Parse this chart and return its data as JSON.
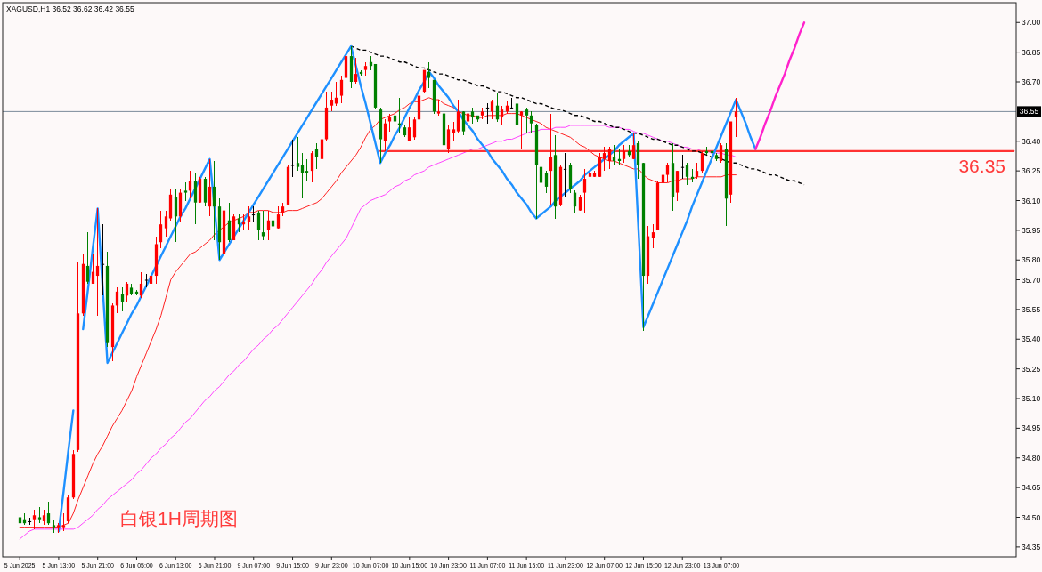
{
  "chart_data": {
    "type": "candlestick",
    "title": "XAGUSD,H1 36.52 36.62 36.42 36.55",
    "categories": [
      "5 Jun 2025",
      null,
      null,
      null,
      null,
      null,
      null,
      null,
      "5 Jun 13:00",
      null,
      null,
      null,
      null,
      null,
      null,
      null,
      "5 Jun 21:00",
      null,
      null,
      null,
      null,
      null,
      null,
      null,
      "6 Jun 05:00",
      null,
      null,
      null,
      null,
      null,
      null,
      null,
      "6 Jun 13:00",
      null,
      null,
      null,
      null,
      null,
      null,
      null,
      "6 Jun 21:00",
      null,
      null,
      null,
      null,
      null,
      null,
      null,
      "9 Jun 07:00",
      null,
      null,
      null,
      null,
      null,
      null,
      null,
      "9 Jun 15:00",
      null,
      null,
      null,
      null,
      null,
      null,
      null,
      "9 Jun 23:00",
      null,
      null,
      null,
      null,
      null,
      null,
      null,
      "10 Jun 07:00",
      null,
      null,
      null,
      null,
      null,
      null,
      null,
      "10 Jun 15:00",
      null,
      null,
      null,
      null,
      null,
      null,
      null,
      "10 Jun 23:00",
      null,
      null,
      null,
      null,
      null,
      null,
      null,
      "11 Jun 07:00",
      null,
      null,
      null,
      null,
      null,
      null,
      null,
      "11 Jun 15:00",
      null,
      null,
      null,
      null,
      null,
      null,
      null,
      "11 Jun 23:00",
      null,
      null,
      null,
      null,
      null,
      null,
      null,
      "12 Jun 07:00",
      null,
      null,
      null,
      null,
      null,
      null,
      null,
      "12 Jun 15:00",
      null,
      null,
      null,
      null,
      null,
      null,
      null,
      "12 Jun 23:00",
      null,
      null,
      null,
      null,
      null,
      null,
      null,
      "13 Jun 07:00",
      null,
      null,
      null,
      null,
      null,
      null,
      null,
      null,
      null,
      null,
      null,
      null,
      null,
      null,
      null,
      null,
      null,
      null,
      null,
      null,
      null,
      null,
      null,
      null,
      null,
      null,
      null,
      null,
      null,
      null,
      null,
      null,
      null,
      null,
      null,
      null,
      null,
      null,
      null,
      null,
      null,
      null,
      null,
      null,
      null,
      null,
      null,
      null,
      null,
      null,
      null,
      null,
      null,
      null,
      null,
      null,
      null,
      null,
      null,
      null
    ],
    "ohlc": [
      [
        34.5,
        34.51,
        34.46,
        34.47
      ],
      [
        34.49,
        34.52,
        34.46,
        34.47
      ],
      [
        34.48,
        34.5,
        34.46,
        34.48
      ],
      [
        34.49,
        34.54,
        34.44,
        34.51
      ],
      [
        34.5,
        34.55,
        34.47,
        34.49
      ],
      [
        34.48,
        34.54,
        34.46,
        34.51
      ],
      [
        34.52,
        34.58,
        34.46,
        34.47
      ],
      [
        34.46,
        34.49,
        34.42,
        34.45
      ],
      [
        34.45,
        34.47,
        34.42,
        34.46
      ],
      [
        34.45,
        34.52,
        34.43,
        34.46
      ],
      [
        34.48,
        34.61,
        34.47,
        34.6
      ],
      [
        34.6,
        34.84,
        34.59,
        34.82
      ],
      [
        34.84,
        35.79,
        34.83,
        35.53
      ],
      [
        35.53,
        35.83,
        35.52,
        35.78
      ],
      [
        35.77,
        35.94,
        35.68,
        35.69
      ],
      [
        35.68,
        35.83,
        35.68,
        35.74
      ],
      [
        35.72,
        36.06,
        35.52,
        35.77
      ],
      [
        35.78,
        35.98,
        35.62,
        35.78
      ],
      [
        35.77,
        35.84,
        35.36,
        35.38
      ],
      [
        35.36,
        35.58,
        35.29,
        35.57
      ],
      [
        35.57,
        35.66,
        35.53,
        35.64
      ],
      [
        35.63,
        35.66,
        35.54,
        35.59
      ],
      [
        35.62,
        35.69,
        35.59,
        35.68
      ],
      [
        35.66,
        35.68,
        35.62,
        35.63
      ],
      [
        35.64,
        35.65,
        35.62,
        35.63
      ],
      [
        35.62,
        35.74,
        35.61,
        35.68
      ],
      [
        35.7,
        35.73,
        35.66,
        35.7
      ],
      [
        35.68,
        35.75,
        35.68,
        35.72
      ],
      [
        35.72,
        35.92,
        35.68,
        35.88
      ],
      [
        35.89,
        36.05,
        35.86,
        35.98
      ],
      [
        35.96,
        36.05,
        35.92,
        36.02
      ],
      [
        36.01,
        36.16,
        36.0,
        36.13
      ],
      [
        36.12,
        36.16,
        35.89,
        36.02
      ],
      [
        36.02,
        36.16,
        35.99,
        36.14
      ],
      [
        36.15,
        36.19,
        36.1,
        36.14
      ],
      [
        36.15,
        36.25,
        36.11,
        36.2
      ],
      [
        36.2,
        36.24,
        35.98,
        36.09
      ],
      [
        36.09,
        36.22,
        36.09,
        36.21
      ],
      [
        36.21,
        36.22,
        36.07,
        36.09
      ],
      [
        36.07,
        36.31,
        36.02,
        36.17
      ],
      [
        36.17,
        36.3,
        35.9,
        36.07
      ],
      [
        36.07,
        36.11,
        35.8,
        35.89
      ],
      [
        35.83,
        36.07,
        35.81,
        36.05
      ],
      [
        36.0,
        36.09,
        35.89,
        35.9
      ],
      [
        35.9,
        36.03,
        35.9,
        36.02
      ],
      [
        36.01,
        36.03,
        35.94,
        35.98
      ],
      [
        35.98,
        36.03,
        35.95,
        35.99
      ],
      [
        35.99,
        36.07,
        35.95,
        36.02
      ],
      [
        36.03,
        36.07,
        35.99,
        36.03
      ],
      [
        36.04,
        36.05,
        35.9,
        35.95
      ],
      [
        35.94,
        36.05,
        35.9,
        35.92
      ],
      [
        35.95,
        36.05,
        35.9,
        36.0
      ],
      [
        36.0,
        36.04,
        35.93,
        35.97
      ],
      [
        35.96,
        36.07,
        35.96,
        36.03
      ],
      [
        36.04,
        36.09,
        36.02,
        36.07
      ],
      [
        36.08,
        36.28,
        36.08,
        36.27
      ],
      [
        36.28,
        36.41,
        36.22,
        36.28
      ],
      [
        36.29,
        36.42,
        36.25,
        36.27
      ],
      [
        36.28,
        36.34,
        36.11,
        36.24
      ],
      [
        36.25,
        36.31,
        36.2,
        36.24
      ],
      [
        36.25,
        36.35,
        36.19,
        36.34
      ],
      [
        36.36,
        36.39,
        36.26,
        36.32
      ],
      [
        36.31,
        36.45,
        36.23,
        36.41
      ],
      [
        36.41,
        36.65,
        36.4,
        36.57
      ],
      [
        36.58,
        36.65,
        36.55,
        36.61
      ],
      [
        36.59,
        36.7,
        36.58,
        36.62
      ],
      [
        36.63,
        36.73,
        36.59,
        36.71
      ],
      [
        36.72,
        36.88,
        36.71,
        36.83
      ],
      [
        36.83,
        36.88,
        36.67,
        36.7
      ],
      [
        36.7,
        36.82,
        36.69,
        36.74
      ],
      [
        36.75,
        36.76,
        36.73,
        36.74
      ],
      [
        36.76,
        36.8,
        36.73,
        36.78
      ],
      [
        36.8,
        36.83,
        36.76,
        36.78
      ],
      [
        36.79,
        36.79,
        36.56,
        36.57
      ],
      [
        36.56,
        36.57,
        36.29,
        36.41
      ],
      [
        36.4,
        36.51,
        36.35,
        36.49
      ],
      [
        36.5,
        36.54,
        36.45,
        36.52
      ],
      [
        36.53,
        36.55,
        36.45,
        36.5
      ],
      [
        36.49,
        36.62,
        36.44,
        36.48
      ],
      [
        36.47,
        36.48,
        36.42,
        36.43
      ],
      [
        36.4,
        36.52,
        36.4,
        36.47
      ],
      [
        36.42,
        36.52,
        36.41,
        36.51
      ],
      [
        36.51,
        36.65,
        36.5,
        36.63
      ],
      [
        36.65,
        36.76,
        36.64,
        36.76
      ],
      [
        36.75,
        36.8,
        36.67,
        36.72
      ],
      [
        36.71,
        36.71,
        36.54,
        36.55
      ],
      [
        36.54,
        36.61,
        36.53,
        36.55
      ],
      [
        36.54,
        36.55,
        36.31,
        36.38
      ],
      [
        36.36,
        36.48,
        36.34,
        36.46
      ],
      [
        36.44,
        36.5,
        36.4,
        36.46
      ],
      [
        36.45,
        36.61,
        36.44,
        36.55
      ],
      [
        36.55,
        36.55,
        36.43,
        36.45
      ],
      [
        36.5,
        36.6,
        36.46,
        36.54
      ],
      [
        36.55,
        36.57,
        36.49,
        36.52
      ],
      [
        36.53,
        36.53,
        36.5,
        36.51
      ],
      [
        36.53,
        36.57,
        36.51,
        36.55
      ],
      [
        36.57,
        36.59,
        36.49,
        36.57
      ],
      [
        36.55,
        36.61,
        36.51,
        36.6
      ],
      [
        36.58,
        36.64,
        36.5,
        36.51
      ],
      [
        36.52,
        36.58,
        36.48,
        36.56
      ],
      [
        36.55,
        36.6,
        36.54,
        36.58
      ],
      [
        36.57,
        36.62,
        36.56,
        36.57
      ],
      [
        36.59,
        36.59,
        36.43,
        36.48
      ],
      [
        36.53,
        36.55,
        36.36,
        36.55
      ],
      [
        36.56,
        36.57,
        36.44,
        36.53
      ],
      [
        36.53,
        36.55,
        36.44,
        36.49
      ],
      [
        36.48,
        36.49,
        36.01,
        36.28
      ],
      [
        36.27,
        36.29,
        36.16,
        36.19
      ],
      [
        36.24,
        36.25,
        36.14,
        36.17
      ],
      [
        36.25,
        36.54,
        36.08,
        36.32
      ],
      [
        36.33,
        36.43,
        36.01,
        36.07
      ],
      [
        36.08,
        36.28,
        36.07,
        36.27
      ],
      [
        36.26,
        36.34,
        36.12,
        36.26
      ],
      [
        36.28,
        36.29,
        36.14,
        36.16
      ],
      [
        36.14,
        36.15,
        36.04,
        36.07
      ],
      [
        36.05,
        36.13,
        36.05,
        36.12
      ],
      [
        36.14,
        36.26,
        36.04,
        36.21
      ],
      [
        36.22,
        36.27,
        36.2,
        36.24
      ],
      [
        36.22,
        36.25,
        36.22,
        36.24
      ],
      [
        36.22,
        36.34,
        36.22,
        36.32
      ],
      [
        36.31,
        36.37,
        36.25,
        36.34
      ],
      [
        36.3,
        36.37,
        36.26,
        36.36
      ],
      [
        36.32,
        36.38,
        36.28,
        36.3
      ],
      [
        36.31,
        36.36,
        36.28,
        36.3
      ],
      [
        36.31,
        36.38,
        36.29,
        36.35
      ],
      [
        36.35,
        36.38,
        36.32,
        36.33
      ],
      [
        36.31,
        36.44,
        36.31,
        36.38
      ],
      [
        36.39,
        36.4,
        36.21,
        36.28
      ],
      [
        36.29,
        36.29,
        35.44,
        35.72
      ],
      [
        35.72,
        35.97,
        35.68,
        35.92
      ],
      [
        35.91,
        35.98,
        35.86,
        35.94
      ],
      [
        35.95,
        36.2,
        35.95,
        36.19
      ],
      [
        36.19,
        36.26,
        36.16,
        36.23
      ],
      [
        36.23,
        36.29,
        36.19,
        36.28
      ],
      [
        36.29,
        36.39,
        36.05,
        36.12
      ],
      [
        36.14,
        36.25,
        36.1,
        36.25
      ],
      [
        36.27,
        36.33,
        36.21,
        36.27
      ],
      [
        36.28,
        36.29,
        36.18,
        36.22
      ],
      [
        36.22,
        36.26,
        36.19,
        36.21
      ],
      [
        36.22,
        36.29,
        36.21,
        36.25
      ],
      [
        36.25,
        36.35,
        36.24,
        36.34
      ],
      [
        36.35,
        36.37,
        36.33,
        36.34
      ],
      [
        36.35,
        36.36,
        36.33,
        36.34
      ],
      [
        36.33,
        36.34,
        36.3,
        36.31
      ],
      [
        36.3,
        36.39,
        36.29,
        36.38
      ],
      [
        36.36,
        36.39,
        35.97,
        36.11
      ],
      [
        36.13,
        36.5,
        36.09,
        36.5
      ],
      [
        36.52,
        36.62,
        36.42,
        36.55
      ],
      null,
      null,
      null,
      null,
      null,
      null,
      null,
      null,
      null,
      null,
      null,
      null,
      null,
      null,
      null,
      null,
      null,
      null,
      null,
      null,
      null,
      null,
      null,
      null,
      null,
      null,
      null,
      null,
      null,
      null,
      null,
      null,
      null,
      null,
      null,
      null,
      null,
      null,
      null,
      null,
      null,
      null,
      null,
      null,
      null,
      null,
      null,
      null,
      null,
      null,
      null,
      null,
      null,
      null,
      null,
      null,
      null
    ],
    "colors": [
      "#008000",
      "#008000",
      "#000000",
      "#ff0000",
      "#008000",
      "#ff0000",
      "#008000",
      "#008000",
      "#ff0000",
      "#ff0000",
      "#ff0000",
      "#ff0000",
      "#ff0000",
      "#ff0000",
      "#008000",
      "#ff0000",
      "#ff0000",
      "#000000",
      "#008000",
      "#ff0000",
      "#ff0000",
      "#008000",
      "#ff0000",
      "#008000",
      "#008000",
      "#ff0000",
      "#000000",
      "#ff0000",
      "#ff0000",
      "#ff0000",
      "#ff0000",
      "#ff0000",
      "#008000",
      "#ff0000",
      "#008000",
      "#ff0000",
      "#008000",
      "#ff0000",
      "#008000",
      "#ff0000",
      "#008000",
      "#008000",
      "#ff0000",
      "#008000",
      "#ff0000",
      "#008000",
      "#ff0000",
      "#ff0000",
      "#000000",
      "#008000",
      "#008000",
      "#ff0000",
      "#008000",
      "#ff0000",
      "#ff0000",
      "#ff0000",
      "#000000",
      "#008000",
      "#008000",
      "#008000",
      "#ff0000",
      "#008000",
      "#ff0000",
      "#ff0000",
      "#ff0000",
      "#ff0000",
      "#ff0000",
      "#ff0000",
      "#008000",
      "#ff0000",
      "#008000",
      "#ff0000",
      "#008000",
      "#008000",
      "#008000",
      "#ff0000",
      "#ff0000",
      "#008000",
      "#008000",
      "#008000",
      "#ff0000",
      "#ff0000",
      "#ff0000",
      "#ff0000",
      "#008000",
      "#008000",
      "#ff0000",
      "#008000",
      "#ff0000",
      "#ff0000",
      "#ff0000",
      "#008000",
      "#ff0000",
      "#008000",
      "#008000",
      "#ff0000",
      "#000000",
      "#ff0000",
      "#008000",
      "#ff0000",
      "#ff0000",
      "#000000",
      "#008000",
      "#ff0000",
      "#008000",
      "#008000",
      "#008000",
      "#008000",
      "#008000",
      "#ff0000",
      "#008000",
      "#ff0000",
      "#000000",
      "#008000",
      "#008000",
      "#ff0000",
      "#ff0000",
      "#ff0000",
      "#ff0000",
      "#ff0000",
      "#ff0000",
      "#ff0000",
      "#008000",
      "#008000",
      "#ff0000",
      "#008000",
      "#ff0000",
      "#008000",
      "#008000",
      "#ff0000",
      "#ff0000",
      "#ff0000",
      "#ff0000",
      "#ff0000",
      "#008000",
      "#ff0000",
      "#000000",
      "#008000",
      "#008000",
      "#ff0000",
      "#ff0000",
      "#008000",
      "#008000",
      "#008000",
      "#ff0000",
      "#008000",
      "#ff0000",
      "#ff0000",
      null,
      null,
      null,
      null,
      null,
      null,
      null,
      null,
      null,
      null,
      null,
      null,
      null,
      null,
      null,
      null,
      null,
      null,
      null,
      null,
      null,
      null,
      null,
      null,
      null,
      null,
      null,
      null,
      null,
      null,
      null,
      null,
      null,
      null,
      null,
      null,
      null,
      null,
      null,
      null,
      null,
      null,
      null,
      null,
      null,
      null,
      null,
      null,
      null,
      null,
      null,
      null,
      null,
      null,
      null,
      null,
      null
    ],
    "series": [
      {
        "type": "line",
        "color": "#ff2020",
        "values": [
          34.45,
          34.45,
          34.45,
          34.45,
          34.45,
          34.45,
          34.45,
          34.45,
          34.45,
          34.46,
          34.47,
          34.52,
          34.59,
          34.65,
          34.71,
          34.77,
          34.82,
          34.86,
          34.91,
          34.96,
          35.0,
          35.04,
          35.09,
          35.14,
          35.21,
          35.27,
          35.33,
          35.39,
          35.45,
          35.52,
          35.61,
          35.7,
          35.74,
          35.77,
          35.8,
          35.83,
          35.84,
          35.86,
          35.88,
          35.9,
          35.93,
          35.95,
          35.97,
          35.99,
          36.0,
          36.01,
          36.02,
          36.04,
          36.04,
          36.05,
          36.05,
          36.05,
          36.04,
          36.04,
          36.04,
          36.05,
          36.05,
          36.05,
          36.06,
          36.07,
          36.08,
          36.09,
          36.11,
          36.14,
          36.17,
          36.2,
          36.24,
          36.27,
          36.3,
          36.33,
          36.37,
          36.42,
          36.46,
          36.48,
          36.51,
          36.52,
          36.53,
          36.54,
          36.56,
          36.57,
          36.59,
          36.6,
          36.6,
          36.61,
          36.62,
          36.61,
          36.61,
          36.59,
          36.58,
          36.57,
          36.55,
          36.54,
          36.53,
          36.53,
          36.52,
          36.52,
          36.53,
          36.53,
          36.53,
          36.53,
          36.54,
          36.54,
          36.54,
          36.53,
          36.52,
          36.51,
          36.5,
          36.49,
          36.47,
          36.46,
          36.45,
          36.44,
          36.43,
          36.42,
          36.4,
          36.38,
          36.37,
          36.35,
          36.33,
          36.32,
          36.31,
          36.3,
          36.3,
          36.29,
          36.28,
          36.27,
          36.26,
          36.26,
          36.23,
          36.21,
          36.2,
          36.19,
          36.19,
          36.19,
          36.2,
          36.2,
          36.21,
          36.21,
          36.21,
          36.22,
          36.22,
          36.22,
          36.22,
          36.22,
          36.22,
          36.23,
          36.23,
          36.23,
          null,
          null,
          null,
          null,
          null,
          null,
          null,
          null,
          null,
          null,
          null,
          null,
          null,
          null,
          null,
          null,
          null,
          null,
          null,
          null,
          null,
          null,
          null,
          null,
          null,
          null,
          null,
          null,
          null,
          null,
          null,
          null,
          null,
          null,
          null,
          null,
          null,
          null,
          null,
          null,
          null,
          null,
          null,
          null,
          null,
          null,
          null,
          null,
          null,
          null,
          null,
          null,
          null,
          null,
          null,
          null,
          null
        ]
      },
      {
        "type": "line",
        "color": "#ff44ff",
        "values": [
          34.39,
          34.41,
          34.43,
          34.44,
          34.44,
          34.44,
          34.44,
          34.44,
          34.44,
          34.44,
          34.44,
          34.44,
          34.45,
          34.47,
          34.49,
          34.51,
          34.54,
          34.56,
          34.59,
          34.61,
          34.63,
          34.65,
          34.67,
          34.69,
          34.72,
          34.74,
          34.77,
          34.8,
          34.82,
          34.85,
          34.87,
          34.9,
          34.92,
          34.95,
          34.98,
          35.0,
          35.03,
          35.06,
          35.09,
          35.11,
          35.14,
          35.16,
          35.19,
          35.22,
          35.24,
          35.27,
          35.29,
          35.32,
          35.35,
          35.37,
          35.4,
          35.42,
          35.45,
          35.47,
          35.5,
          35.53,
          35.56,
          35.59,
          35.62,
          35.65,
          35.68,
          35.72,
          35.75,
          35.79,
          35.82,
          35.85,
          35.88,
          35.91,
          35.96,
          36.01,
          36.06,
          36.08,
          36.1,
          36.11,
          36.12,
          36.13,
          36.15,
          36.17,
          36.18,
          36.2,
          36.21,
          36.23,
          36.24,
          36.25,
          36.27,
          36.28,
          36.29,
          36.3,
          36.31,
          36.32,
          36.33,
          36.34,
          36.35,
          36.36,
          36.36,
          36.37,
          36.38,
          36.39,
          36.4,
          36.4,
          36.41,
          36.41,
          36.42,
          36.43,
          36.44,
          36.45,
          36.45,
          36.46,
          36.46,
          36.46,
          36.47,
          36.47,
          36.47,
          36.48,
          36.48,
          36.48,
          36.48,
          36.48,
          36.48,
          36.48,
          36.48,
          36.47,
          36.47,
          36.47,
          36.46,
          36.46,
          36.45,
          36.44,
          36.44,
          36.43,
          36.42,
          36.41,
          36.4,
          36.4,
          36.39,
          36.38,
          36.37,
          36.37,
          36.36,
          36.36,
          36.35,
          36.35,
          36.34,
          36.34,
          36.34,
          36.33,
          36.33,
          36.32,
          null,
          null,
          null,
          null,
          null,
          null,
          null,
          null,
          null,
          null,
          null,
          null,
          null,
          null,
          null,
          null,
          null,
          null,
          null,
          null,
          null,
          null,
          null,
          null,
          null,
          null,
          null,
          null,
          null,
          null,
          null,
          null,
          null,
          null,
          null,
          null,
          null,
          null,
          null,
          null,
          null,
          null,
          null,
          null,
          null,
          null,
          null,
          null,
          null,
          null,
          null,
          null,
          null,
          null,
          null,
          null,
          null
        ]
      },
      {
        "type": "line",
        "color": "#ff3333",
        "values": [
          null,
          null,
          null,
          null,
          null,
          null,
          null,
          null,
          null,
          null,
          null,
          null,
          null,
          null,
          null,
          null,
          null,
          null,
          null,
          null,
          null,
          null,
          null,
          null,
          null,
          null,
          null,
          null,
          null,
          null,
          null,
          null,
          null,
          null,
          null,
          null,
          null,
          null,
          null,
          null,
          null,
          null,
          null,
          null,
          null,
          null,
          null,
          null,
          null,
          null,
          null,
          null,
          null,
          null,
          null,
          null,
          null,
          null,
          null,
          null,
          null,
          null,
          null,
          null,
          null,
          null,
          null,
          null,
          null,
          null,
          null,
          null,
          null,
          null,
          36.35,
          36.35,
          36.35,
          36.35,
          36.35,
          36.35,
          36.35,
          36.35,
          36.35,
          36.35,
          36.35,
          36.35,
          36.35,
          36.35,
          36.35,
          36.35,
          36.35,
          36.35,
          36.35,
          36.35,
          36.35,
          36.35,
          36.35,
          36.35,
          36.35,
          36.35,
          36.35,
          36.35,
          36.35,
          36.35,
          36.35,
          36.35,
          36.35,
          36.35,
          36.35,
          36.35,
          36.35,
          36.35,
          36.35,
          36.35,
          36.35,
          36.35,
          36.35,
          36.35,
          36.35,
          36.35,
          36.35,
          36.35,
          36.35,
          36.35,
          36.35,
          36.35,
          36.35,
          36.35,
          36.35,
          36.35,
          36.35,
          36.35,
          36.35,
          36.35,
          36.35,
          36.35,
          36.35,
          36.35,
          36.35,
          36.35,
          36.35,
          36.35,
          36.35,
          36.35,
          36.35,
          36.35,
          36.35,
          36.35,
          36.35,
          36.35,
          36.35,
          36.35,
          36.35,
          36.35,
          36.35,
          36.35,
          36.35,
          36.35,
          36.35,
          36.35,
          36.35,
          36.35,
          36.35,
          36.35,
          36.35,
          36.35,
          36.35,
          36.35,
          36.35,
          36.35,
          36.35,
          36.35,
          36.35,
          36.35,
          36.35,
          36.35,
          36.35,
          36.35,
          36.35,
          36.35,
          36.35,
          36.35,
          36.35,
          36.35,
          36.35,
          36.35,
          36.35,
          36.35,
          36.35,
          36.35,
          36.35,
          36.35,
          36.35,
          36.35,
          36.35,
          36.35,
          36.35,
          36.35,
          36.35,
          36.35,
          36.35,
          36.35,
          36.35,
          36.35,
          36.35
        ]
      },
      {
        "type": "line",
        "color": "#000000",
        "line_style": "dashed",
        "values": [
          null,
          null,
          null,
          null,
          null,
          null,
          null,
          null,
          null,
          null,
          null,
          null,
          null,
          null,
          null,
          null,
          null,
          null,
          null,
          null,
          null,
          null,
          null,
          null,
          null,
          null,
          null,
          null,
          null,
          null,
          null,
          null,
          null,
          null,
          null,
          null,
          null,
          null,
          null,
          null,
          null,
          null,
          null,
          null,
          null,
          null,
          null,
          null,
          null,
          null,
          null,
          null,
          null,
          null,
          null,
          null,
          null,
          null,
          null,
          null,
          null,
          null,
          null,
          null,
          null,
          null,
          null,
          null,
          36.88,
          36.87,
          36.86,
          36.86,
          36.85,
          36.84,
          36.83,
          36.83,
          36.82,
          36.81,
          36.8,
          36.8,
          36.79,
          36.78,
          36.77,
          36.77,
          36.76,
          36.75,
          36.74,
          36.74,
          36.73,
          36.72,
          36.71,
          36.71,
          36.7,
          36.69,
          36.68,
          36.68,
          36.67,
          36.66,
          36.65,
          36.65,
          36.64,
          36.63,
          36.62,
          36.62,
          36.61,
          36.6,
          36.59,
          36.59,
          36.58,
          36.57,
          36.56,
          36.56,
          36.55,
          36.54,
          36.53,
          36.53,
          36.52,
          36.51,
          36.5,
          36.5,
          36.49,
          36.48,
          36.47,
          36.47,
          36.46,
          36.45,
          36.44,
          36.44,
          36.43,
          36.42,
          36.41,
          36.41,
          36.4,
          36.39,
          36.38,
          36.38,
          36.37,
          36.36,
          36.35,
          36.35,
          36.34,
          36.33,
          36.32,
          36.32,
          36.31,
          36.3,
          36.29,
          36.29,
          36.28,
          36.27,
          36.26,
          36.26,
          36.25,
          36.24,
          36.23,
          36.23,
          36.22,
          36.21,
          36.2,
          36.2,
          36.19,
          36.18,
          null,
          null,
          null,
          null,
          null,
          null,
          null,
          null,
          null,
          null,
          null,
          null,
          null,
          null,
          null,
          null,
          null,
          null,
          null,
          null,
          null,
          null,
          null,
          null,
          null,
          null,
          null,
          null,
          null,
          null,
          null,
          null,
          null,
          null,
          null,
          null,
          null,
          null,
          null,
          null,
          null,
          null,
          null
        ]
      },
      {
        "type": "line",
        "color": "#1e90ff",
        "values": [
          null,
          null,
          null,
          null,
          null,
          null,
          null,
          null,
          34.43,
          34.63,
          34.84,
          35.04,
          null,
          35.45,
          35.65,
          35.86,
          36.06,
          35.67,
          35.28,
          35.33,
          35.38,
          35.43,
          35.48,
          35.53,
          35.57,
          35.62,
          35.67,
          35.72,
          35.77,
          35.82,
          35.87,
          35.92,
          35.97,
          36.02,
          36.06,
          36.11,
          36.16,
          36.21,
          36.26,
          36.31,
          36.06,
          35.8,
          35.84,
          35.88,
          35.92,
          35.96,
          36.0,
          36.04,
          36.08,
          36.12,
          36.16,
          36.2,
          36.24,
          36.28,
          36.32,
          36.36,
          36.4,
          36.44,
          36.48,
          36.52,
          36.56,
          36.6,
          36.64,
          36.68,
          36.72,
          36.76,
          36.8,
          36.84,
          36.88,
          36.78,
          36.68,
          36.59,
          36.49,
          36.39,
          36.29,
          36.34,
          36.38,
          36.43,
          36.47,
          36.52,
          36.57,
          36.61,
          36.66,
          36.7,
          36.75,
          36.72,
          36.68,
          36.65,
          36.62,
          36.58,
          36.55,
          36.51,
          36.48,
          36.45,
          36.41,
          36.38,
          36.35,
          36.31,
          36.28,
          36.25,
          36.21,
          36.18,
          36.14,
          36.11,
          36.08,
          36.04,
          36.01,
          36.03,
          36.05,
          36.07,
          36.1,
          36.12,
          36.14,
          36.16,
          36.18,
          36.2,
          36.23,
          36.25,
          36.27,
          36.29,
          36.31,
          36.33,
          36.35,
          36.38,
          36.4,
          36.42,
          36.44,
          35.95,
          35.46,
          35.52,
          35.58,
          35.64,
          35.7,
          35.76,
          35.82,
          35.88,
          35.94,
          36.0,
          36.07,
          36.13,
          36.19,
          36.25,
          36.31,
          36.37,
          36.43,
          36.49,
          36.55,
          36.61,
          36.55,
          36.49,
          36.42,
          36.36,
          null,
          null,
          null,
          null,
          null,
          null,
          null,
          null,
          null,
          null,
          null,
          null,
          null,
          null,
          null,
          null,
          null,
          null,
          null,
          null,
          null,
          null,
          null,
          null,
          null,
          null,
          null,
          null,
          null,
          null,
          null,
          null,
          null,
          null,
          null,
          null,
          null,
          null,
          null,
          null,
          null,
          null,
          null,
          null,
          null,
          null,
          null,
          null,
          null,
          null,
          null,
          null,
          null
        ]
      },
      {
        "type": "line",
        "color": "#ff22cc",
        "values": [
          null,
          null,
          null,
          null,
          null,
          null,
          null,
          null,
          null,
          null,
          null,
          null,
          null,
          null,
          null,
          null,
          null,
          null,
          null,
          null,
          null,
          null,
          null,
          null,
          null,
          null,
          null,
          null,
          null,
          null,
          null,
          null,
          null,
          null,
          null,
          null,
          null,
          null,
          null,
          null,
          null,
          null,
          null,
          null,
          null,
          null,
          null,
          null,
          null,
          null,
          null,
          null,
          null,
          null,
          null,
          null,
          null,
          null,
          null,
          null,
          null,
          null,
          null,
          null,
          null,
          null,
          null,
          null,
          null,
          null,
          null,
          null,
          null,
          null,
          null,
          null,
          null,
          null,
          null,
          null,
          null,
          null,
          null,
          null,
          null,
          null,
          null,
          null,
          null,
          null,
          null,
          null,
          null,
          null,
          null,
          null,
          null,
          null,
          null,
          null,
          null,
          null,
          null,
          null,
          null,
          null,
          null,
          null,
          null,
          null,
          null,
          null,
          null,
          null,
          null,
          null,
          null,
          null,
          null,
          null,
          null,
          null,
          null,
          null,
          null,
          null,
          null,
          null,
          null,
          null,
          null,
          null,
          null,
          null,
          null,
          null,
          null,
          null,
          null,
          null,
          null,
          null,
          null,
          null,
          null,
          null,
          null,
          null,
          null,
          null,
          null,
          36.36,
          36.42,
          36.49,
          36.55,
          36.62,
          36.68,
          36.74,
          36.81,
          36.87,
          36.94,
          37.0,
          null,
          null,
          null,
          null,
          null,
          null,
          null,
          null,
          null,
          null,
          null,
          null,
          null,
          null,
          null,
          null,
          null,
          null,
          null,
          null,
          null,
          null,
          null,
          null,
          null,
          null,
          null,
          null,
          null,
          null,
          null,
          null,
          null,
          null,
          null,
          null,
          null,
          null,
          null,
          null,
          null,
          null,
          null
        ]
      }
    ],
    "ref_lines": [
      {
        "axis": "y",
        "value": 36.55,
        "label": "36.55",
        "color": "#7a8a9a"
      }
    ],
    "annotations": [
      {
        "text": "36.35",
        "y": 36.35
      },
      "白银1H周期图"
    ],
    "ylim": [
      34.3,
      37.1
    ],
    "yticks": [
      34.35,
      {
        "value": 34.5,
        "label": "34.50"
      },
      34.65,
      {
        "value": 34.8,
        "label": "34.80"
      },
      34.95,
      {
        "value": 35.1,
        "label": "35.10"
      },
      35.25,
      {
        "value": 35.4,
        "label": "35.40"
      },
      35.55,
      {
        "value": 35.7,
        "label": "35.70"
      },
      {
        "value": 35.8,
        "label": "35.80"
      },
      35.95,
      {
        "value": 36.1,
        "label": "36.10"
      },
      36.25,
      {
        "value": 36.4,
        "label": "36.40"
      },
      {
        "value": 36.7,
        "label": "36.70"
      },
      36.85,
      {
        "value": 37,
        "label": "37.00"
      }
    ]
  }
}
